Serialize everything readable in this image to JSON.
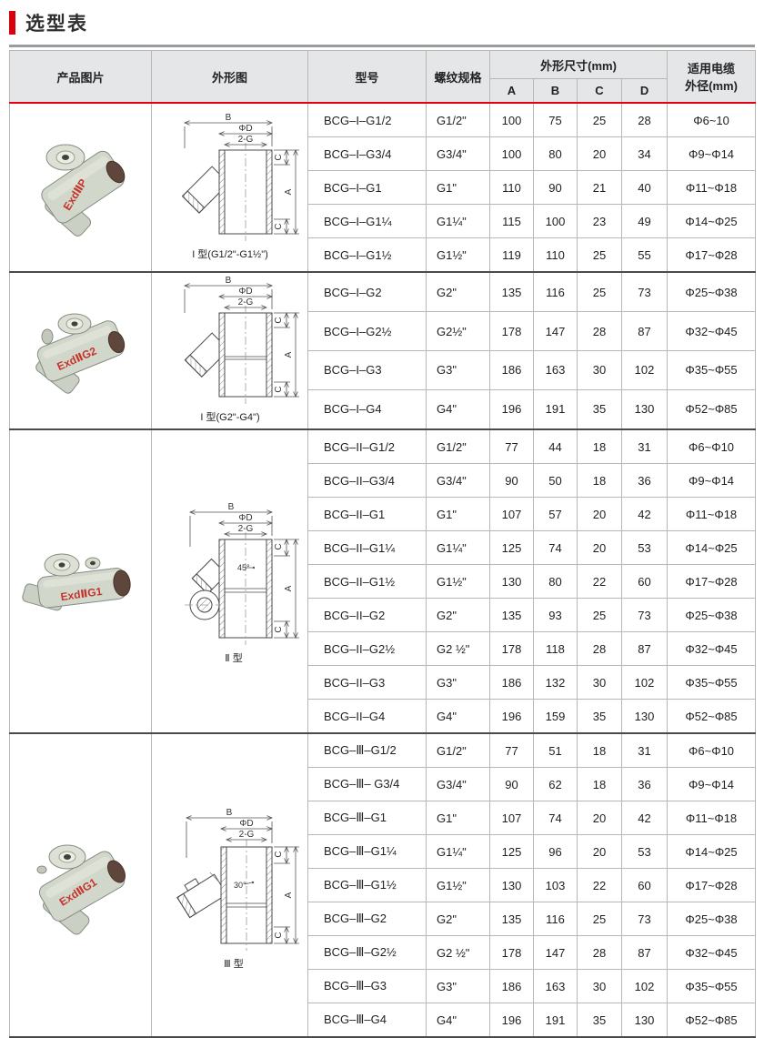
{
  "page": {
    "title": "选型表"
  },
  "colors": {
    "accent_red": "#e60012",
    "title_bar_red": "#d7000f",
    "header_bg": "#e5e6e8",
    "grid_line": "#b7b7b7",
    "group_separator": "#4a4a4a",
    "photo_body_gray_green": "#d2d7cc",
    "marking_red": "#c5342b"
  },
  "table": {
    "headers": {
      "product_image": "产品图片",
      "outline_drawing": "外形图",
      "model": "型号",
      "thread_spec": "螺纹规格",
      "dimensions": "外形尺寸(mm)",
      "dim_a": "A",
      "dim_b": "B",
      "dim_c": "C",
      "dim_d": "D",
      "cable_line1": "适用电缆",
      "cable_line2": "外径(mm)"
    },
    "drawing_labels": {
      "b": "B",
      "d": "ΦD",
      "g": "2-G",
      "a": "A",
      "c": "C",
      "angle_45": "45°",
      "angle_30": "30°"
    },
    "groups": [
      {
        "photo_label": "ExdⅡP",
        "caption": "I 型(G1/2\"-G1½\")",
        "rows": [
          {
            "model": "BCG–I–G1/2",
            "thread": "G1/2\"",
            "a": "100",
            "b": "75",
            "c": "25",
            "d": "28",
            "cable": "Φ6~10"
          },
          {
            "model": "BCG–I–G3/4",
            "thread": "G3/4\"",
            "a": "100",
            "b": "80",
            "c": "20",
            "d": "34",
            "cable": "Φ9~Φ14"
          },
          {
            "model": "BCG–I–G1",
            "thread": "G1\"",
            "a": "110",
            "b": "90",
            "c": "21",
            "d": "40",
            "cable": "Φ11~Φ18"
          },
          {
            "model": "BCG–I–G1¼",
            "thread": "G1¼\"",
            "a": "115",
            "b": "100",
            "c": "23",
            "d": "49",
            "cable": "Φ14~Φ25"
          },
          {
            "model": "BCG–I–G1½",
            "thread": "G1½\"",
            "a": "119",
            "b": "110",
            "c": "25",
            "d": "55",
            "cable": "Φ17~Φ28"
          }
        ]
      },
      {
        "photo_label": "ExdⅡG2",
        "caption": "I 型(G2\"-G4\")",
        "rows": [
          {
            "model": "BCG–I–G2",
            "thread": "G2\"",
            "a": "135",
            "b": "116",
            "c": "25",
            "d": "73",
            "cable": "Φ25~Φ38"
          },
          {
            "model": "BCG–I–G2½",
            "thread": "G2½\"",
            "a": "178",
            "b": "147",
            "c": "28",
            "d": "87",
            "cable": "Φ32~Φ45"
          },
          {
            "model": "BCG–I–G3",
            "thread": "G3\"",
            "a": "186",
            "b": "163",
            "c": "30",
            "d": "102",
            "cable": "Φ35~Φ55"
          },
          {
            "model": "BCG–I–G4",
            "thread": "G4\"",
            "a": "196",
            "b": "191",
            "c": "35",
            "d": "130",
            "cable": "Φ52~Φ85"
          }
        ]
      },
      {
        "photo_label": "ExdⅡG1",
        "caption": "Ⅱ 型",
        "rows": [
          {
            "model": "BCG–II–G1/2",
            "thread": "G1/2\"",
            "a": "77",
            "b": "44",
            "c": "18",
            "d": "31",
            "cable": "Φ6~Φ10"
          },
          {
            "model": "BCG–II–G3/4",
            "thread": "G3/4\"",
            "a": "90",
            "b": "50",
            "c": "18",
            "d": "36",
            "cable": "Φ9~Φ14"
          },
          {
            "model": "BCG–II–G1",
            "thread": "G1\"",
            "a": "107",
            "b": "57",
            "c": "20",
            "d": "42",
            "cable": "Φ11~Φ18"
          },
          {
            "model": "BCG–II–G1¼",
            "thread": "G1¼\"",
            "a": "125",
            "b": "74",
            "c": "20",
            "d": "53",
            "cable": "Φ14~Φ25"
          },
          {
            "model": "BCG–II–G1½",
            "thread": "G1½\"",
            "a": "130",
            "b": "80",
            "c": "22",
            "d": "60",
            "cable": "Φ17~Φ28"
          },
          {
            "model": "BCG–II–G2",
            "thread": "G2\"",
            "a": "135",
            "b": "93",
            "c": "25",
            "d": "73",
            "cable": "Φ25~Φ38"
          },
          {
            "model": "BCG–II–G2½",
            "thread": "G2 ½\"",
            "a": "178",
            "b": "118",
            "c": "28",
            "d": "87",
            "cable": "Φ32~Φ45"
          },
          {
            "model": "BCG–II–G3",
            "thread": "G3\"",
            "a": "186",
            "b": "132",
            "c": "30",
            "d": "102",
            "cable": "Φ35~Φ55"
          },
          {
            "model": "BCG–II–G4",
            "thread": "G4\"",
            "a": "196",
            "b": "159",
            "c": "35",
            "d": "130",
            "cable": "Φ52~Φ85"
          }
        ]
      },
      {
        "photo_label": "ExdⅡG1",
        "caption": "Ⅲ 型",
        "rows": [
          {
            "model": "BCG–Ⅲ–G1/2",
            "thread": "G1/2\"",
            "a": "77",
            "b": "51",
            "c": "18",
            "d": "31",
            "cable": "Φ6~Φ10"
          },
          {
            "model": "BCG–Ⅲ– G3/4",
            "thread": "G3/4\"",
            "a": "90",
            "b": "62",
            "c": "18",
            "d": "36",
            "cable": "Φ9~Φ14"
          },
          {
            "model": "BCG–Ⅲ–G1",
            "thread": "G1\"",
            "a": "107",
            "b": "74",
            "c": "20",
            "d": "42",
            "cable": "Φ11~Φ18"
          },
          {
            "model": "BCG–Ⅲ–G1¼",
            "thread": "G1¼\"",
            "a": "125",
            "b": "96",
            "c": "20",
            "d": "53",
            "cable": "Φ14~Φ25"
          },
          {
            "model": "BCG–Ⅲ–G1½",
            "thread": "G1½\"",
            "a": "130",
            "b": "103",
            "c": "22",
            "d": "60",
            "cable": "Φ17~Φ28"
          },
          {
            "model": "BCG–Ⅲ–G2",
            "thread": "G2\"",
            "a": "135",
            "b": "116",
            "c": "25",
            "d": "73",
            "cable": "Φ25~Φ38"
          },
          {
            "model": "BCG–Ⅲ–G2½",
            "thread": "G2 ½\"",
            "a": "178",
            "b": "147",
            "c": "28",
            "d": "87",
            "cable": "Φ32~Φ45"
          },
          {
            "model": "BCG–Ⅲ–G3",
            "thread": "G3\"",
            "a": "186",
            "b": "163",
            "c": "30",
            "d": "102",
            "cable": "Φ35~Φ55"
          },
          {
            "model": "BCG–Ⅲ–G4",
            "thread": "G4\"",
            "a": "196",
            "b": "191",
            "c": "35",
            "d": "130",
            "cable": "Φ52~Φ85"
          }
        ]
      }
    ]
  }
}
